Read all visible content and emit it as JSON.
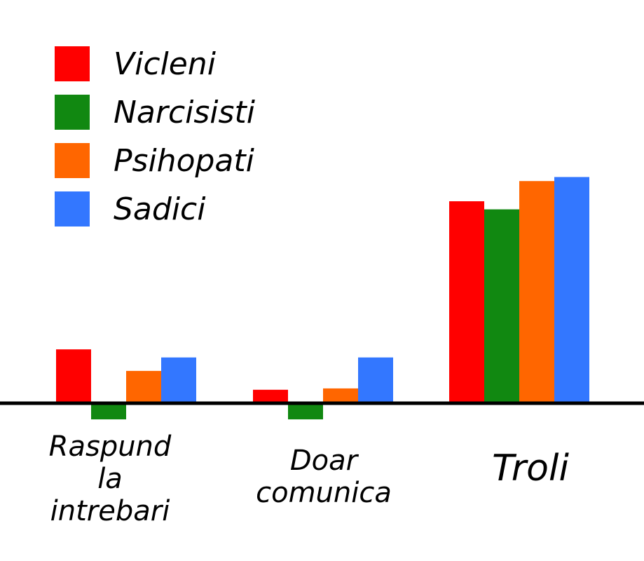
{
  "chart_data": {
    "type": "bar",
    "title": "",
    "xlabel": "",
    "ylabel": "",
    "ylim": [
      -1.2,
      16
    ],
    "grid": false,
    "legend_position": "top-left",
    "categories": [
      [
        "Raspund",
        "la",
        "intrebari"
      ],
      [
        "Doar",
        "comunica"
      ],
      [
        "Troli"
      ]
    ],
    "series": [
      {
        "name": "Vicleni",
        "color": "#ff0000",
        "values": [
          4.0,
          1.0,
          15.0
        ]
      },
      {
        "name": "Narcisisti",
        "color": "#118811",
        "values": [
          -1.2,
          -1.2,
          14.4
        ]
      },
      {
        "name": "Psihopati",
        "color": "#ff6600",
        "values": [
          2.4,
          1.1,
          16.5
        ]
      },
      {
        "name": "Sadici",
        "color": "#3377ff",
        "values": [
          3.4,
          3.4,
          16.8
        ]
      }
    ]
  }
}
